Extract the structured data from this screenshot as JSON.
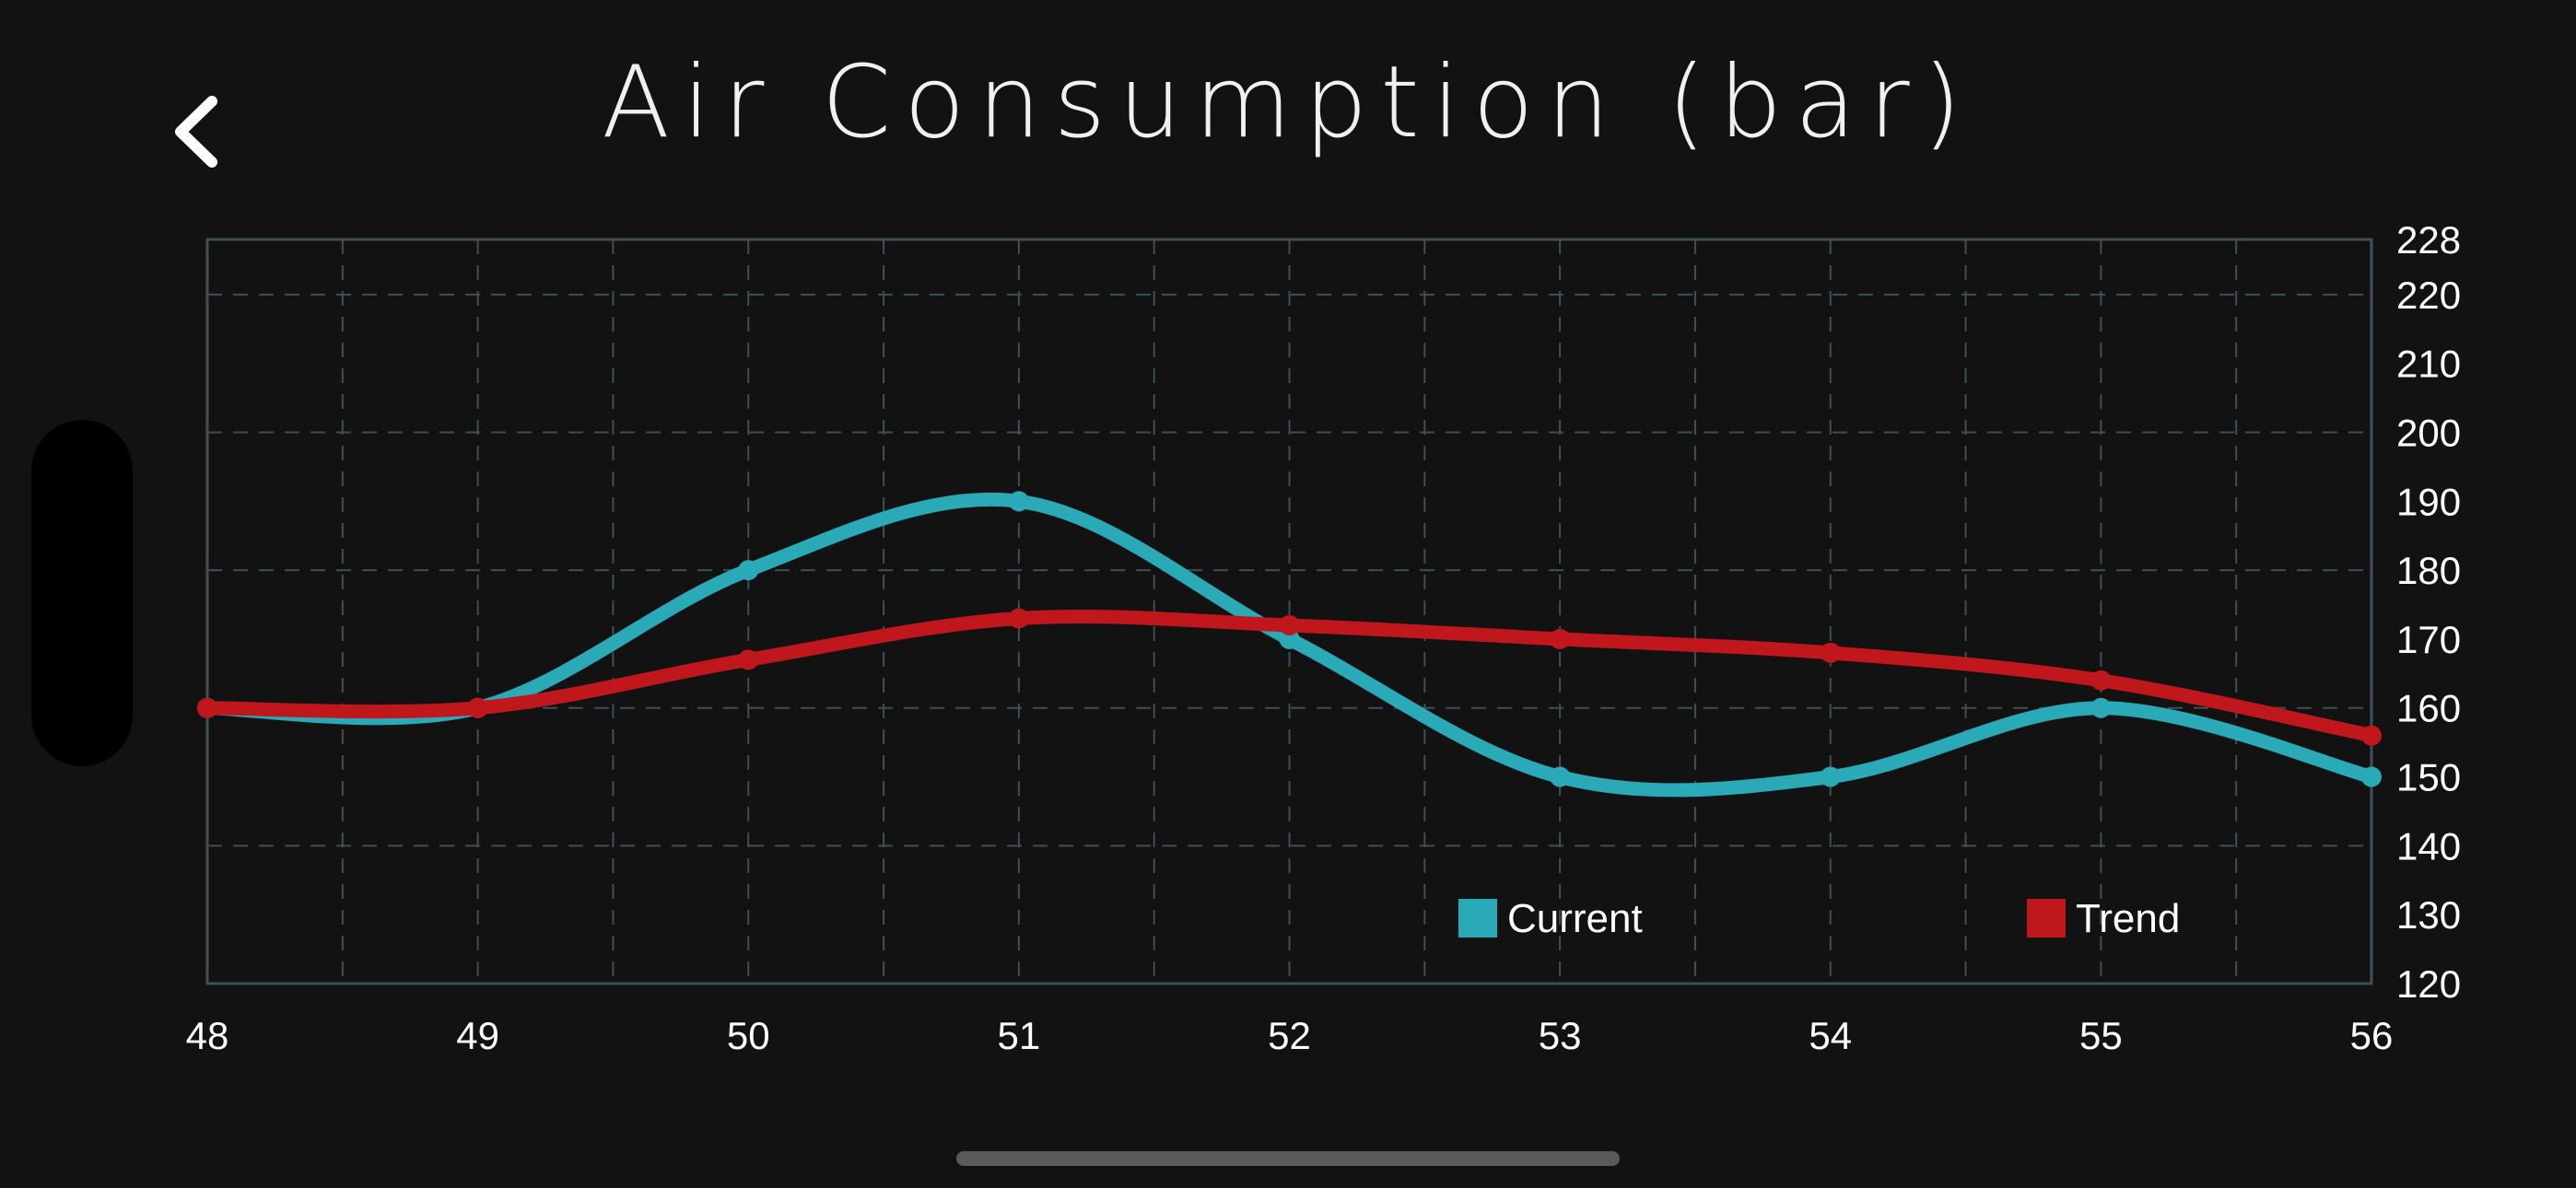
{
  "header": {
    "title": "Air Consumption (bar)",
    "back_icon": "chevron-left-icon"
  },
  "colors": {
    "background": "#121212",
    "current": "#2aa9b7",
    "trend": "#c0171d",
    "grid": "#3c5058"
  },
  "chart_data": {
    "type": "line",
    "title": "Air Consumption (bar)",
    "xlabel": "",
    "ylabel": "",
    "x": [
      48,
      49,
      50,
      51,
      52,
      53,
      54,
      55,
      56
    ],
    "xlim": [
      48,
      56
    ],
    "ylim": [
      120,
      228
    ],
    "y_axis_position": "right",
    "y_ticks": [
      120,
      130,
      140,
      150,
      160,
      170,
      180,
      190,
      200,
      210,
      220,
      228
    ],
    "x_ticks": [
      48,
      49,
      50,
      51,
      52,
      53,
      54,
      55,
      56
    ],
    "grid": true,
    "legend_position": "bottom-right",
    "series": [
      {
        "name": "Current",
        "color": "#2aa9b7",
        "values": [
          160,
          160,
          180,
          190,
          170,
          150,
          150,
          160,
          150
        ]
      },
      {
        "name": "Trend",
        "color": "#c0171d",
        "values": [
          160,
          160,
          167,
          173,
          172,
          170,
          168,
          164,
          156
        ]
      }
    ]
  }
}
